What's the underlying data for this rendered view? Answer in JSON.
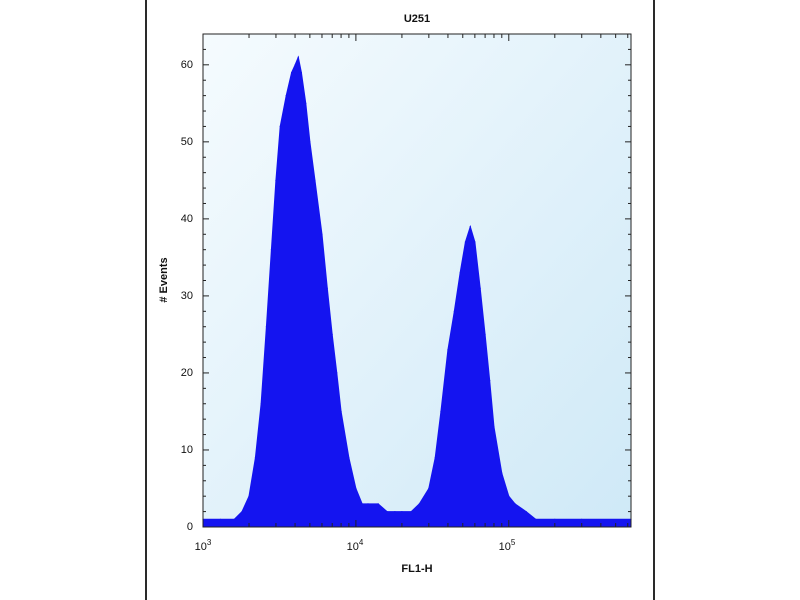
{
  "chart_data": {
    "type": "area",
    "title": "U251",
    "xlabel": "FL1-H",
    "ylabel": "# Events",
    "x_scale": "log",
    "xlim": [
      1000,
      630000
    ],
    "ylim": [
      0,
      64
    ],
    "y_ticks": [
      "0",
      "10",
      "20",
      "30",
      "40",
      "50",
      "60"
    ],
    "y_tick_values": [
      0,
      10,
      20,
      30,
      40,
      50,
      60
    ],
    "x_ticks": [
      {
        "base": "10",
        "exp": "3",
        "value": 1000
      },
      {
        "base": "10",
        "exp": "4",
        "value": 10000
      },
      {
        "base": "10",
        "exp": "5",
        "value": 100000
      }
    ],
    "grid": false,
    "legend": "none",
    "series": [
      {
        "x": [
          1000,
          1300,
          1600,
          1800,
          2000,
          2200,
          2400,
          2600,
          2800,
          3000,
          3200,
          3500,
          3800,
          4000,
          4200,
          4400,
          4700,
          5000,
          5400,
          6000,
          6500,
          7000,
          7500,
          8000,
          9000,
          10000,
          11000,
          12000,
          14000,
          16000,
          18000,
          20000,
          23000,
          26000,
          30000,
          33000,
          36000,
          40000,
          44000,
          48000,
          52000,
          56000,
          60000,
          65000,
          70000,
          75000,
          80000,
          90000,
          100000,
          110000,
          130000,
          150000,
          200000,
          300000,
          630000
        ],
        "y": [
          1,
          1,
          1,
          2,
          4,
          9,
          16,
          26,
          36,
          45,
          52,
          56,
          59,
          60,
          61,
          59,
          55,
          50,
          45,
          38,
          31,
          25,
          20,
          15,
          9,
          5,
          3,
          3,
          3,
          2,
          2,
          2,
          2,
          3,
          5,
          9,
          15,
          23,
          28,
          33,
          37,
          39,
          37,
          31,
          25,
          19,
          13,
          7,
          4,
          3,
          2,
          1,
          1,
          1,
          1
        ]
      }
    ],
    "colors": {
      "fill": "#1414f0",
      "plot_bg_top": "#f2fafd",
      "plot_bg_bottom": "#cfe9f7"
    }
  }
}
